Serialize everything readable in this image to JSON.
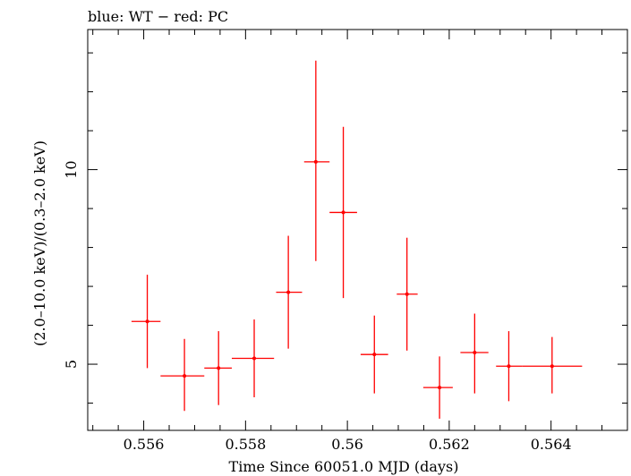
{
  "chart_data": {
    "type": "scatter",
    "title": "blue: WT − red: PC",
    "xlabel": "Time Since 60051.0 MJD (days)",
    "ylabel": "(2.0–10.0 keV)/(0.3–2.0 keV)",
    "xlim": [
      0.5549,
      0.5655
    ],
    "ylim": [
      3.3,
      13.6
    ],
    "x_ticks": [
      0.556,
      0.558,
      0.56,
      0.562,
      0.564
    ],
    "x_tick_labels": [
      "0.556",
      "0.558",
      "0.56",
      "0.562",
      "0.564"
    ],
    "y_ticks": [
      5,
      10
    ],
    "y_tick_labels": [
      "5",
      "10"
    ],
    "x_minor_step": 0.0005,
    "y_minor_step": 1,
    "grid": false,
    "legend": "none",
    "series": [
      {
        "color": "#ff0000",
        "points": [
          {
            "x": 0.55607,
            "y": 6.1,
            "x_lo": 0.55576,
            "x_hi": 0.55633,
            "y_lo": 4.9,
            "y_hi": 7.3
          },
          {
            "x": 0.5568,
            "y": 4.7,
            "x_lo": 0.55633,
            "x_hi": 0.55719,
            "y_lo": 3.8,
            "y_hi": 5.65
          },
          {
            "x": 0.55747,
            "y": 4.9,
            "x_lo": 0.55719,
            "x_hi": 0.55773,
            "y_lo": 3.95,
            "y_hi": 5.85
          },
          {
            "x": 0.55817,
            "y": 5.15,
            "x_lo": 0.55773,
            "x_hi": 0.55856,
            "y_lo": 4.15,
            "y_hi": 6.15
          },
          {
            "x": 0.55884,
            "y": 6.85,
            "x_lo": 0.5586,
            "x_hi": 0.55911,
            "y_lo": 5.4,
            "y_hi": 8.3
          },
          {
            "x": 0.55938,
            "y": 10.2,
            "x_lo": 0.55915,
            "x_hi": 0.55965,
            "y_lo": 7.65,
            "y_hi": 12.8
          },
          {
            "x": 0.55992,
            "y": 8.9,
            "x_lo": 0.55965,
            "x_hi": 0.56019,
            "y_lo": 6.7,
            "y_hi": 11.1
          },
          {
            "x": 0.56053,
            "y": 5.25,
            "x_lo": 0.56026,
            "x_hi": 0.5608,
            "y_lo": 4.25,
            "y_hi": 6.25
          },
          {
            "x": 0.56117,
            "y": 6.8,
            "x_lo": 0.56097,
            "x_hi": 0.56138,
            "y_lo": 5.35,
            "y_hi": 8.25
          },
          {
            "x": 0.56181,
            "y": 4.4,
            "x_lo": 0.56149,
            "x_hi": 0.56207,
            "y_lo": 3.6,
            "y_hi": 5.2
          },
          {
            "x": 0.5625,
            "y": 5.3,
            "x_lo": 0.56222,
            "x_hi": 0.56277,
            "y_lo": 4.25,
            "y_hi": 6.3
          },
          {
            "x": 0.56317,
            "y": 4.95,
            "x_lo": 0.56292,
            "x_hi": 0.56344,
            "y_lo": 4.05,
            "y_hi": 5.85
          },
          {
            "x": 0.56402,
            "y": 4.95,
            "x_lo": 0.56344,
            "x_hi": 0.56461,
            "y_lo": 4.25,
            "y_hi": 5.7
          }
        ]
      }
    ]
  }
}
